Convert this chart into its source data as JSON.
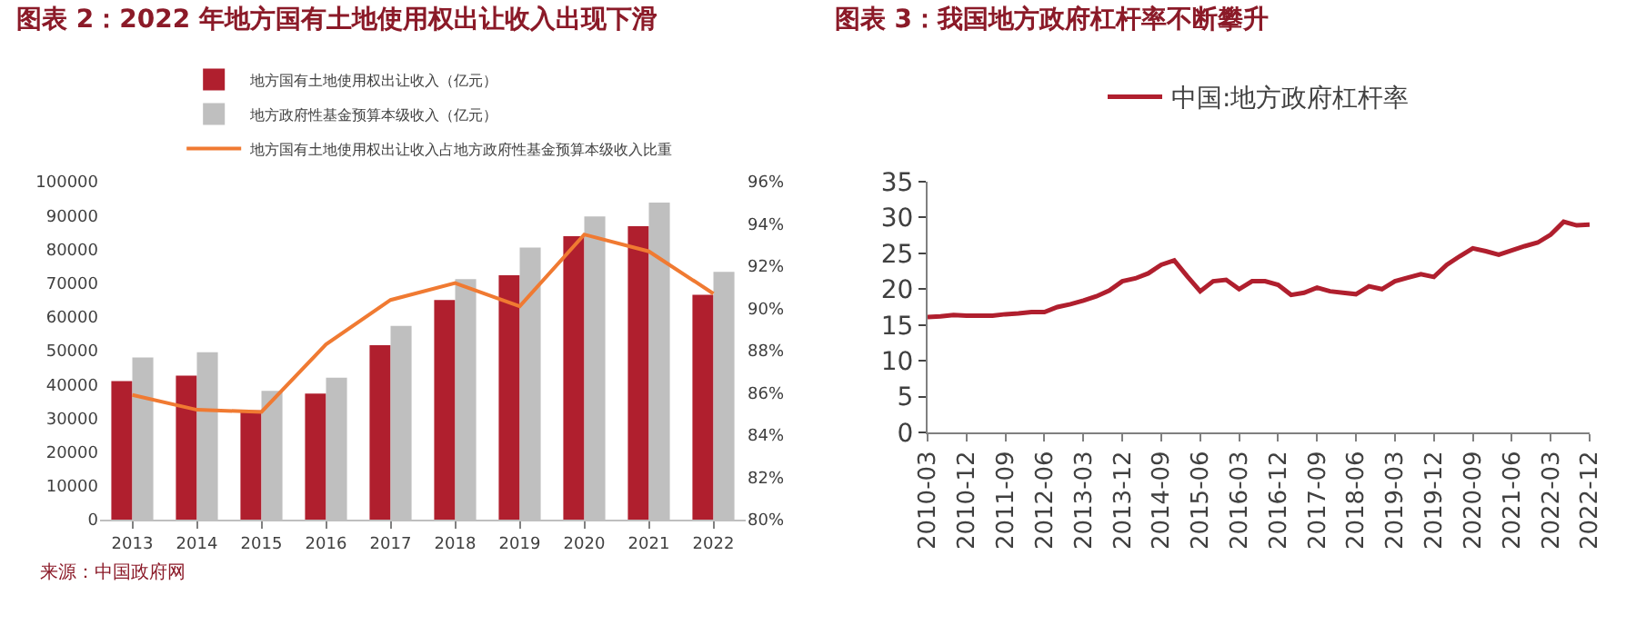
{
  "chart_data": [
    {
      "type": "bar",
      "title": "图表 2：2022 年地方国有土地使用权出让收入出现下滑",
      "categories": [
        "2013",
        "2014",
        "2015",
        "2016",
        "2017",
        "2018",
        "2019",
        "2020",
        "2021",
        "2022"
      ],
      "series": [
        {
          "name": "地方国有土地使用权出让收入（亿元）",
          "color": "#b01f2e",
          "values": [
            41000,
            42600,
            32300,
            37300,
            51600,
            65000,
            72300,
            83900,
            86800,
            66500
          ]
        },
        {
          "name": "地方政府性基金预算本级收入（亿元）",
          "color": "#bfbfbf",
          "values": [
            48000,
            49500,
            38100,
            42000,
            57300,
            71200,
            80500,
            89700,
            93800,
            73300
          ]
        },
        {
          "name": "地方国有土地使用权出让收入占地方政府性基金预算本级收入比重",
          "type": "line",
          "axis": "y2",
          "color": "#f07a32",
          "values": [
            85.9,
            85.2,
            85.1,
            88.3,
            90.4,
            91.2,
            90.1,
            93.5,
            92.7,
            90.7
          ]
        }
      ],
      "ylim": [
        0,
        100000
      ],
      "yticks": [
        0,
        10000,
        20000,
        30000,
        40000,
        50000,
        60000,
        70000,
        80000,
        90000,
        100000
      ],
      "y2lim": [
        80,
        96
      ],
      "y2ticks": [
        {
          "value": 80,
          "label": "80%"
        },
        {
          "value": 82,
          "label": "82%"
        },
        {
          "value": 84,
          "label": "84%"
        },
        {
          "value": 86,
          "label": "86%"
        },
        {
          "value": 88,
          "label": "88%"
        },
        {
          "value": 90,
          "label": "90%"
        },
        {
          "value": 92,
          "label": "92%"
        },
        {
          "value": 94,
          "label": "94%"
        },
        {
          "value": 96,
          "label": "96%"
        }
      ],
      "grid": false,
      "legend": "top",
      "annotations": [
        "来源：中国政府网"
      ]
    },
    {
      "type": "line",
      "title": "图表 3：我国地方政府杠杆率不断攀升",
      "categories": [
        "2010-03",
        null,
        null,
        "2010-12",
        null,
        null,
        "2011-09",
        null,
        null,
        "2012-06",
        null,
        null,
        "2013-03",
        null,
        null,
        "2013-12",
        null,
        null,
        "2014-09",
        null,
        null,
        "2015-06",
        null,
        null,
        "2016-03",
        null,
        null,
        "2016-12",
        null,
        null,
        "2017-09",
        null,
        null,
        "2018-06",
        null,
        null,
        "2019-03",
        null,
        null,
        "2019-12",
        null,
        null,
        "2020-09",
        null,
        null,
        "2021-06",
        null,
        null,
        "2022-03",
        null,
        null,
        "2022-12"
      ],
      "series": [
        {
          "name": "中国:地方政府杠杆率",
          "color": "#b01f2e",
          "values": [
            16.1,
            16.2,
            16.4,
            16.3,
            16.3,
            16.3,
            16.5,
            16.6,
            16.8,
            16.8,
            17.5,
            17.9,
            18.4,
            19.0,
            19.8,
            21.1,
            21.5,
            22.2,
            23.4,
            24.0,
            21.8,
            19.7,
            21.1,
            21.3,
            20.0,
            21.1,
            21.1,
            20.6,
            19.2,
            19.5,
            20.2,
            19.7,
            19.5,
            19.3,
            20.4,
            20.0,
            21.1,
            21.6,
            22.1,
            21.7,
            23.4,
            24.6,
            25.7,
            25.3,
            24.8,
            25.4,
            26.0,
            26.5,
            27.6,
            29.4,
            28.9,
            29.0
          ]
        }
      ],
      "ylim": [
        0,
        35
      ],
      "yticks": [
        0,
        5,
        10,
        15,
        20,
        25,
        30,
        35
      ],
      "grid": false,
      "legend": "top",
      "line_style": "solid"
    }
  ]
}
